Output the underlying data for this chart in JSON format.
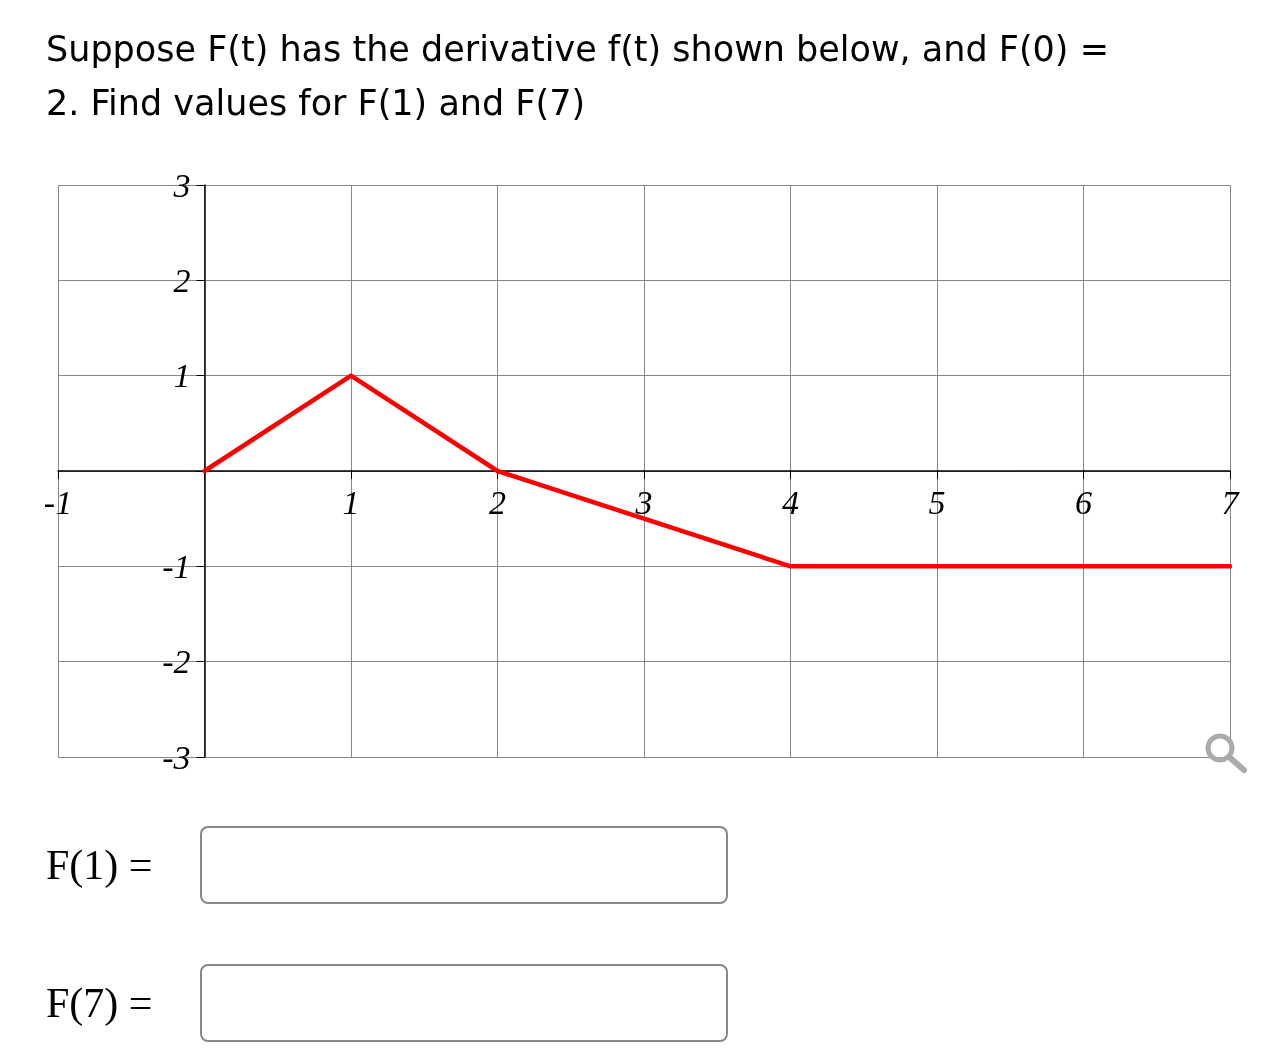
{
  "chart_data": {
    "type": "line",
    "title": "Suppose F(t) has the derivative f(t) shown below, and F(0) = 2. Find values for F(1) and F(7)",
    "x": [
      0,
      1,
      2,
      4,
      7
    ],
    "series": [
      {
        "color": "#ff0000",
        "values": [
          0,
          1,
          0,
          -1,
          -1
        ]
      }
    ],
    "xlim": [
      -1,
      7
    ],
    "xticks": [
      -1,
      1,
      2,
      3,
      4,
      5,
      6,
      7
    ],
    "ylim": [
      -3,
      3
    ],
    "yticks": [
      -3,
      -2,
      -1,
      1,
      2,
      3
    ],
    "grid": true,
    "marker": "none",
    "line_style": "solid",
    "annotations": [
      "F(1) =",
      "F(7) ="
    ]
  }
}
